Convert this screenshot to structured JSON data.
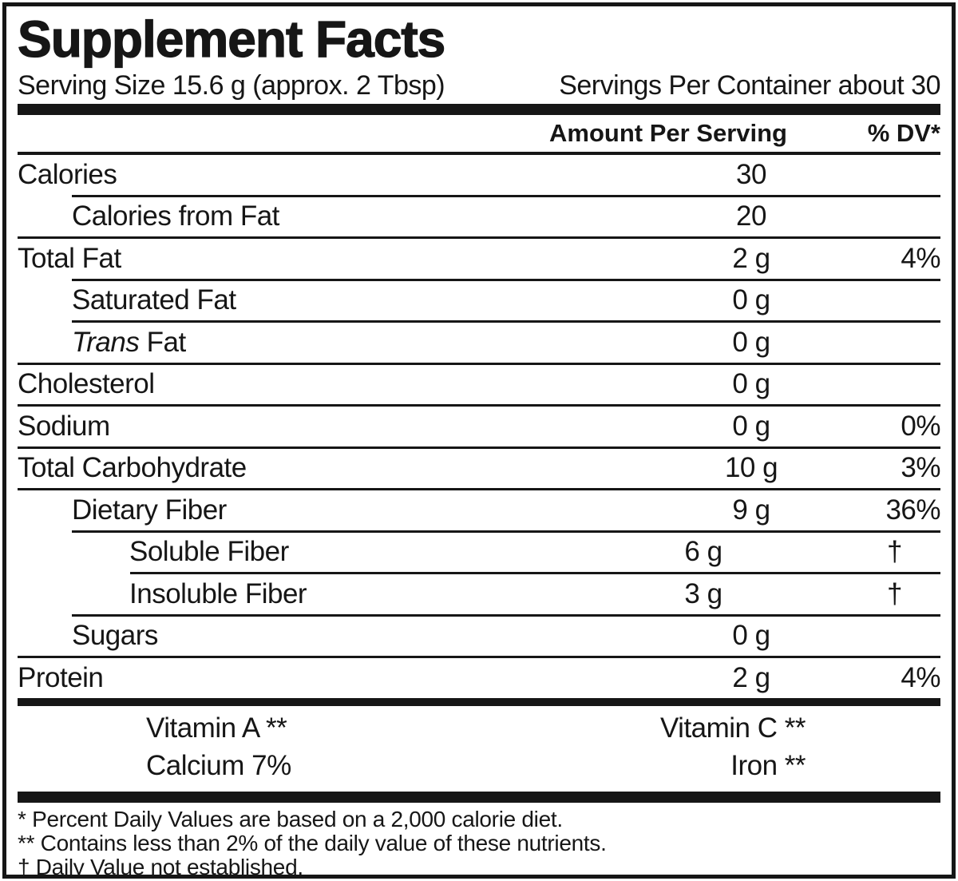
{
  "header": {
    "title": "Supplement Facts",
    "serving_size": "Serving Size 15.6 g (approx. 2 Tbsp)",
    "servings_per_container": "Servings Per Container about 30",
    "amount_column_header": "Amount Per Serving",
    "dv_column_header": "% DV*"
  },
  "main": {
    "rows": [
      {
        "label": "Calories",
        "amount": "30",
        "dv": "",
        "indent": 0
      },
      {
        "label": "Calories from Fat",
        "amount": "20",
        "dv": "",
        "indent": 1
      },
      {
        "label": "Total Fat",
        "amount": "2 g",
        "dv": "4%",
        "indent": 0
      },
      {
        "label": "Saturated Fat",
        "amount": "0 g",
        "dv": "",
        "indent": 1
      },
      {
        "label_italic": "Trans",
        "label": " Fat",
        "amount": "0 g",
        "dv": "",
        "indent": 1
      },
      {
        "label": "Cholesterol",
        "amount": "0 g",
        "dv": "",
        "indent": 0
      },
      {
        "label": "Sodium",
        "amount": "0 g",
        "dv": "0%",
        "indent": 0
      },
      {
        "label": "Total Carbohydrate",
        "amount": "10 g",
        "dv": "3%",
        "indent": 0
      },
      {
        "label": "Dietary Fiber",
        "amount": "9 g",
        "dv": "36%",
        "indent": 1
      },
      {
        "label": "Soluble Fiber",
        "amount": "6 g",
        "dv": "†",
        "indent": 2
      },
      {
        "label": "Insoluble Fiber",
        "amount": "3 g",
        "dv": "†",
        "indent": 2
      },
      {
        "label": "Sugars",
        "amount": "0 g",
        "dv": "",
        "indent": 1
      },
      {
        "label": "Protein",
        "amount": "2 g",
        "dv": "4%",
        "indent": 0
      }
    ]
  },
  "vitamins": {
    "rows": [
      {
        "left": "Vitamin A **",
        "right": "Vitamin C **"
      },
      {
        "left": "Calcium 7%",
        "right": "Iron **"
      }
    ]
  },
  "footnotes": [
    "* Percent Daily Values are based on a 2,000 calorie diet.",
    "** Contains less than 2% of the daily value of these nutrients.",
    "† Daily Value not established."
  ],
  "colors": {
    "ink": "#161616",
    "background": "#ffffff"
  }
}
